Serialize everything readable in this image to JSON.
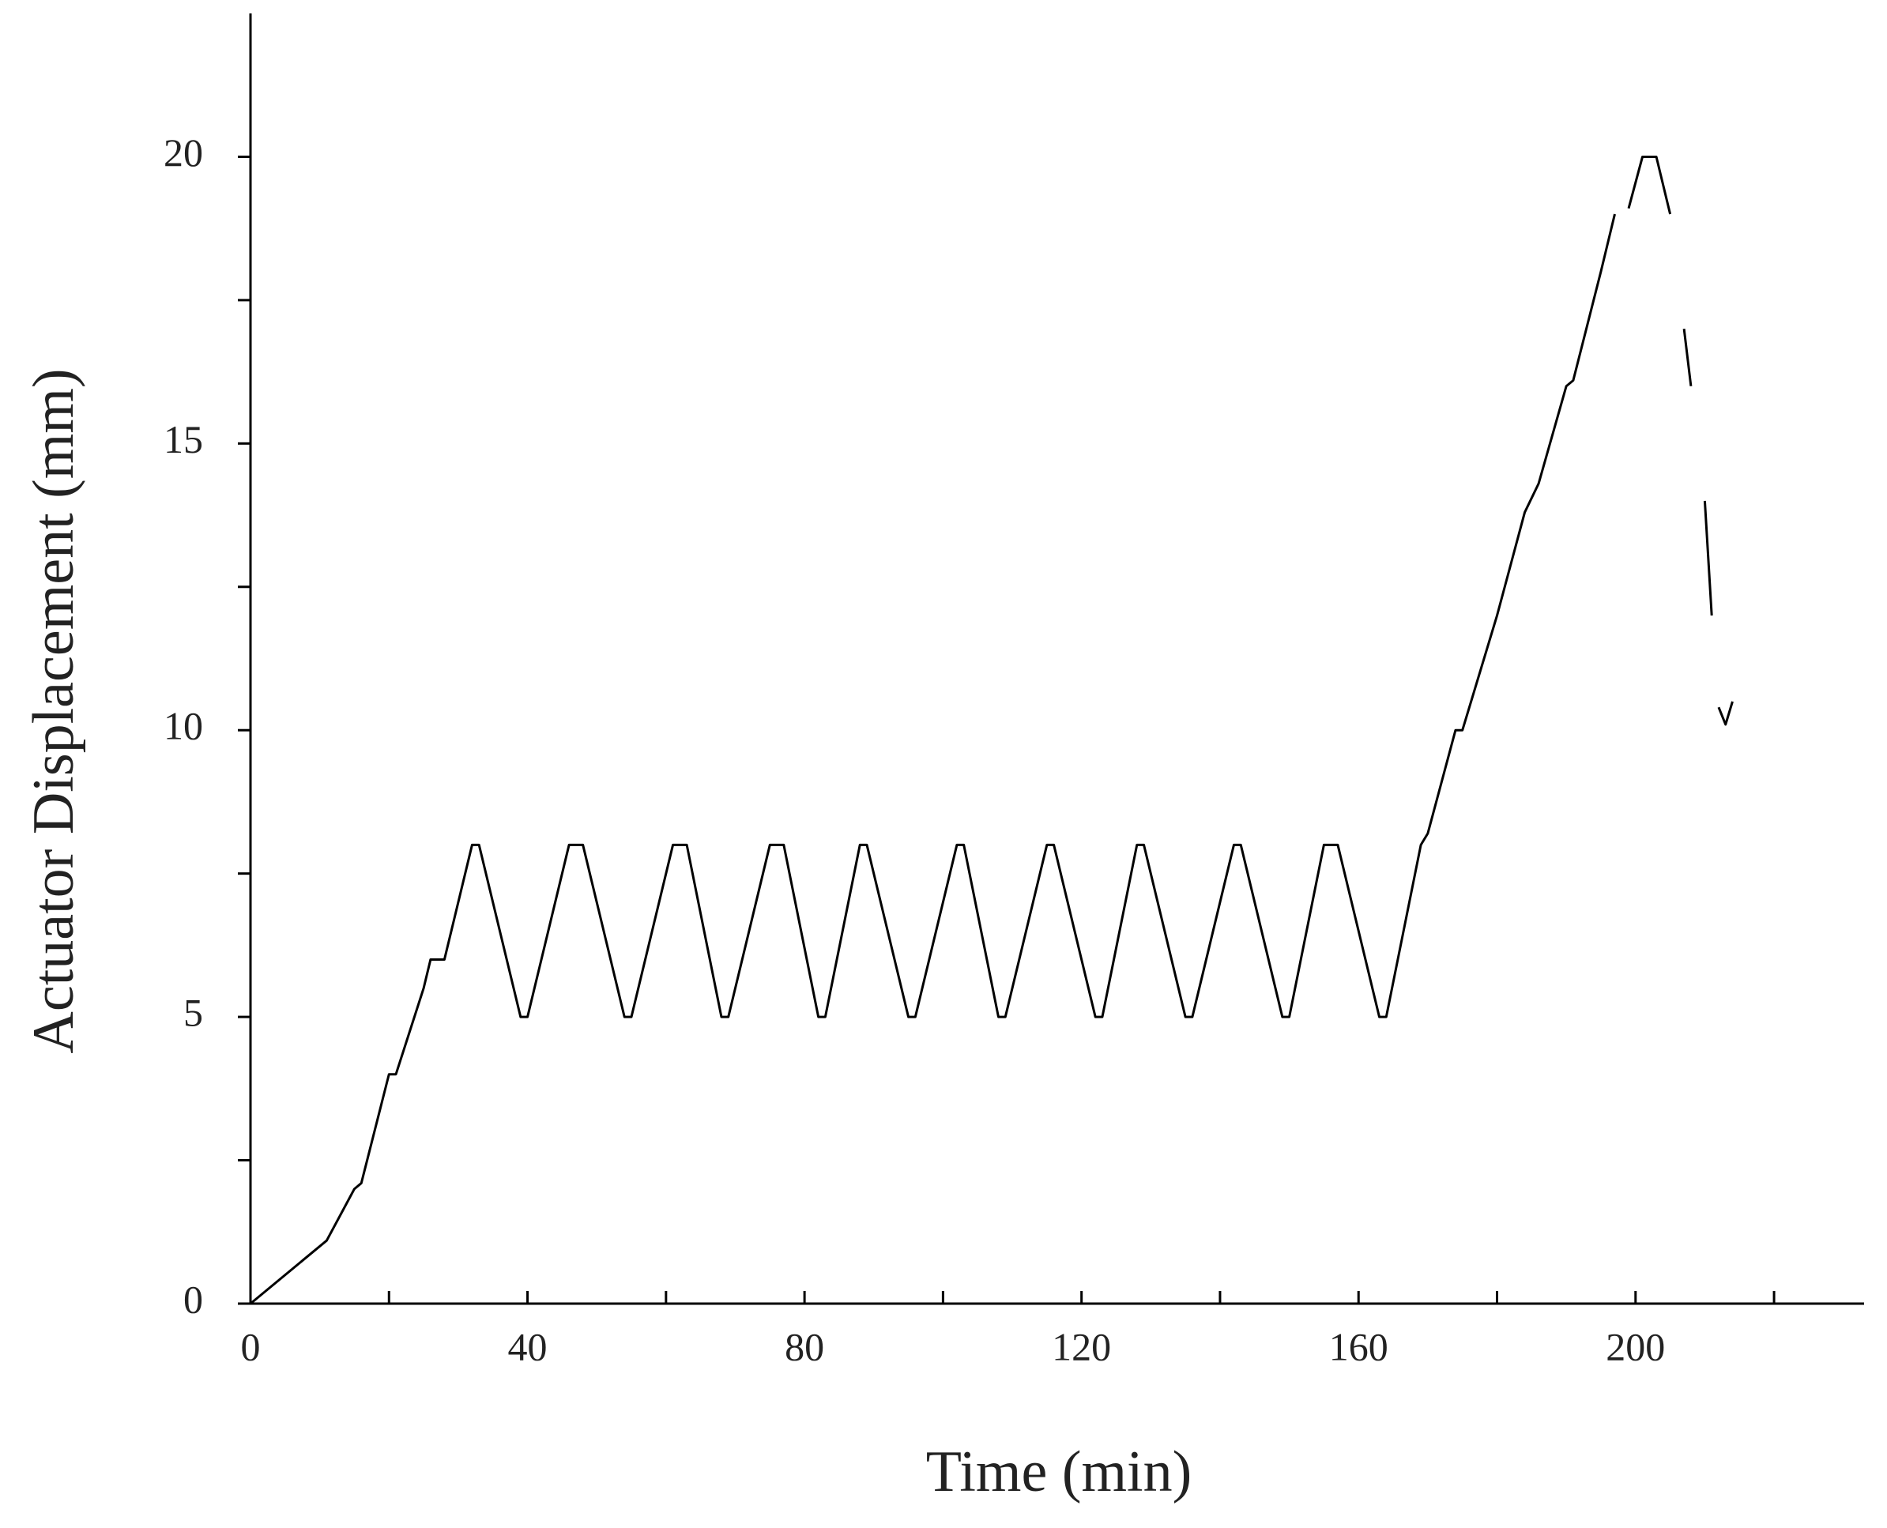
{
  "chart_data": {
    "type": "line",
    "xlabel": "Time (min)",
    "ylabel": "Actuator Displacement (mm)",
    "x": [
      0,
      10,
      11,
      15,
      16,
      20,
      21,
      25,
      26,
      28,
      32,
      33,
      39,
      40,
      46,
      48,
      54,
      55,
      61,
      63,
      68,
      69,
      75,
      77,
      82,
      83,
      88,
      89,
      95,
      96,
      102,
      103,
      108,
      109,
      115,
      116,
      122,
      123,
      128,
      129,
      135,
      136,
      142,
      143,
      149,
      150,
      155,
      157,
      163,
      164,
      169,
      170,
      174,
      175,
      180,
      184,
      186,
      190,
      191,
      195,
      197,
      198,
      199,
      201,
      203,
      205,
      206,
      207,
      208,
      209,
      210,
      211,
      211.5,
      212,
      213,
      214
    ],
    "series": [
      {
        "name": "Actuator Displacement",
        "color": "#000000",
        "values": [
          0,
          1,
          1.1,
          2,
          2.1,
          4,
          4,
          5.5,
          6,
          6,
          8,
          8,
          5,
          5,
          8,
          8,
          5,
          5,
          8,
          8,
          5,
          5,
          8,
          8,
          5,
          5,
          8,
          8,
          5,
          5,
          8,
          8,
          5,
          5,
          8,
          8,
          5,
          5,
          8,
          8,
          5,
          5,
          8,
          8,
          5,
          5,
          8,
          8,
          5,
          5,
          8,
          8.2,
          10,
          10,
          12,
          13.8,
          14.3,
          16,
          16.1,
          18,
          19,
          null,
          19.1,
          20,
          20,
          19,
          null,
          17,
          16,
          null,
          14,
          12,
          null,
          10.4,
          10.1,
          10.5
        ]
      }
    ],
    "xlim": [
      0,
      233
    ],
    "ylim": [
      0,
      22.5
    ],
    "xticks": [
      0,
      40,
      80,
      120,
      160,
      200
    ],
    "yticks": [
      0,
      5,
      10,
      15,
      20
    ],
    "xminor": [
      20,
      60,
      100,
      140,
      180,
      220
    ],
    "yminor": [
      2.5,
      7.5,
      12.5,
      17.5
    ],
    "grid": false
  }
}
